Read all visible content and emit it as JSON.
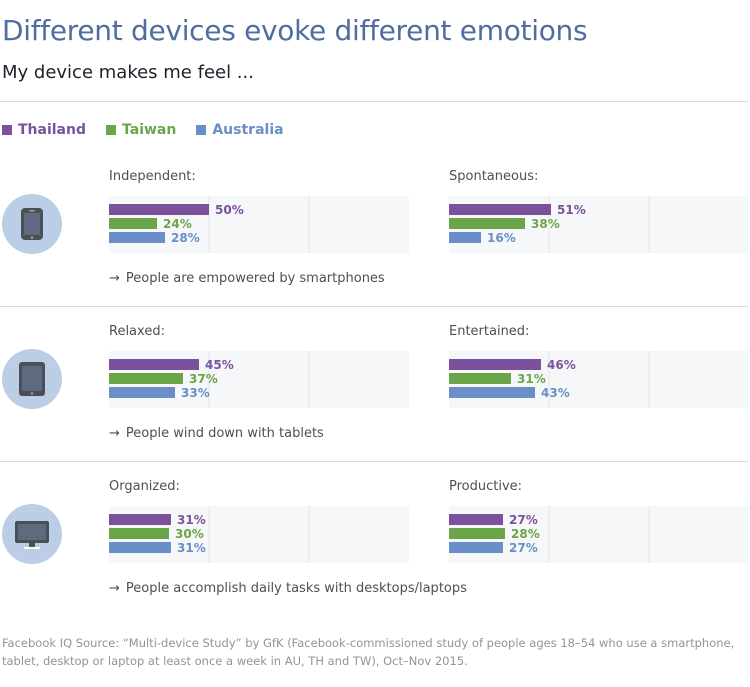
{
  "title": "Different devices evoke different emotions",
  "subtitle": "My device makes me feel ...",
  "legend": [
    {
      "label": "Thailand",
      "color": "#7b519d"
    },
    {
      "label": "Taiwan",
      "color": "#6ba54a"
    },
    {
      "label": "Australia",
      "color": "#6a8ec8"
    }
  ],
  "sections": [
    {
      "device": "smartphone",
      "caption_arrow": "→",
      "caption": "People are empowered by smartphones"
    },
    {
      "device": "tablet",
      "caption_arrow": "→",
      "caption": "People wind down with tablets"
    },
    {
      "device": "desktop",
      "caption_arrow": "→",
      "caption": "People accomplish daily tasks with desktops/laptops"
    }
  ],
  "source": "Facebook IQ Source: “Multi-device Study” by GfK (Facebook-commissioned study of people ages 18–54 who use a smartphone, tablet, desktop or laptop at least once a week in AU, TH and TW), Oct–Nov 2015.",
  "chart_data": [
    {
      "type": "bar",
      "title": "Independent:",
      "categories": [
        "Thailand",
        "Taiwan",
        "Australia"
      ],
      "values": [
        50,
        24,
        28
      ],
      "unit": "%",
      "xlim": [
        0,
        100
      ]
    },
    {
      "type": "bar",
      "title": "Spontaneous:",
      "categories": [
        "Thailand",
        "Taiwan",
        "Australia"
      ],
      "values": [
        51,
        38,
        16
      ],
      "unit": "%",
      "xlim": [
        0,
        100
      ]
    },
    {
      "type": "bar",
      "title": "Relaxed:",
      "categories": [
        "Thailand",
        "Taiwan",
        "Australia"
      ],
      "values": [
        45,
        37,
        33
      ],
      "unit": "%",
      "xlim": [
        0,
        100
      ]
    },
    {
      "type": "bar",
      "title": "Entertained:",
      "categories": [
        "Thailand",
        "Taiwan",
        "Australia"
      ],
      "values": [
        46,
        31,
        43
      ],
      "unit": "%",
      "xlim": [
        0,
        100
      ]
    },
    {
      "type": "bar",
      "title": "Organized:",
      "categories": [
        "Thailand",
        "Taiwan",
        "Australia"
      ],
      "values": [
        31,
        30,
        31
      ],
      "unit": "%",
      "xlim": [
        0,
        100
      ]
    },
    {
      "type": "bar",
      "title": "Productive:",
      "categories": [
        "Thailand",
        "Taiwan",
        "Australia"
      ],
      "values": [
        27,
        28,
        27
      ],
      "unit": "%",
      "xlim": [
        0,
        100
      ]
    }
  ]
}
